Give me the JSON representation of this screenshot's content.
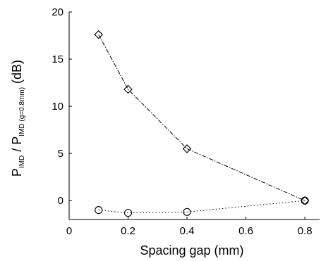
{
  "chart_data": {
    "type": "line",
    "xlabel": "Spacing gap (mm)",
    "ylabel_main": "P",
    "ylabel_sub1": "IMD",
    "ylabel_sep": " / P",
    "ylabel_sub2": "IMD (g=0.8mm)",
    "ylabel_unit": " (dB)",
    "xlim": [
      0,
      0.85
    ],
    "ylim": [
      -2,
      20
    ],
    "xticks": [
      0,
      0.2,
      0.4,
      0.6,
      0.8
    ],
    "yticks": [
      0,
      5,
      10,
      15,
      20
    ],
    "xtick_labels": [
      "0",
      "0.2",
      "0.4",
      "0.6",
      "0.8"
    ],
    "ytick_labels": [
      "0",
      "5",
      "10",
      "15",
      "20"
    ],
    "series": [
      {
        "x": [
          0.1,
          0.2,
          0.4,
          0.8
        ],
        "y": [
          17.6,
          11.8,
          5.5,
          0
        ],
        "marker": "diamond",
        "line_style": "dash-dot",
        "color": "#000000"
      },
      {
        "x": [
          0.1,
          0.2,
          0.4,
          0.8
        ],
        "y": [
          -1.0,
          -1.3,
          -1.2,
          0
        ],
        "marker": "circle",
        "line_style": "dotted",
        "color": "#000000"
      }
    ],
    "grid": false,
    "legend": "none"
  }
}
